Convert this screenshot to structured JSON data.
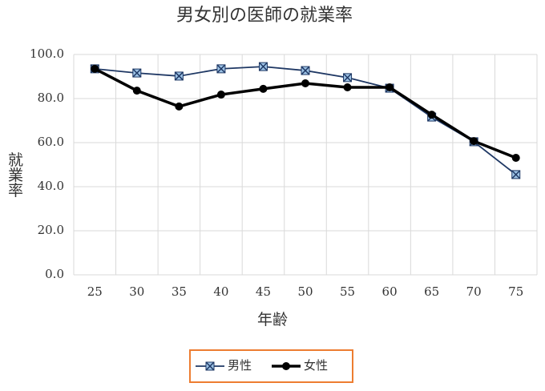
{
  "chart_data": {
    "type": "line",
    "title": "男女別の医師の就業率",
    "x_label": "年齢",
    "y_label": "就業率",
    "categories": [
      "25",
      "30",
      "35",
      "40",
      "45",
      "50",
      "55",
      "60",
      "65",
      "70",
      "75"
    ],
    "series": [
      {
        "name": "男性",
        "color": "#1f3864",
        "marker": "x-square",
        "values": [
          93.5,
          91.6,
          90.2,
          93.5,
          94.5,
          92.7,
          89.5,
          84.7,
          71.6,
          60.4,
          45.5
        ]
      },
      {
        "name": "女性",
        "color": "#000000",
        "marker": "circle",
        "values": [
          93.5,
          83.6,
          76.4,
          81.8,
          84.4,
          86.9,
          85.1,
          85.1,
          72.7,
          60.7,
          53.1
        ]
      }
    ],
    "ylim": [
      0,
      100
    ],
    "yticks": [
      {
        "value": 0,
        "label": "0.0"
      },
      {
        "value": 20,
        "label": "20.0"
      },
      {
        "value": 40,
        "label": "40.0"
      },
      {
        "value": 60,
        "label": "60.0"
      },
      {
        "value": 80,
        "label": "80.0"
      },
      {
        "value": 100,
        "label": "100.0"
      }
    ],
    "grid": true,
    "legend": "bottom"
  }
}
